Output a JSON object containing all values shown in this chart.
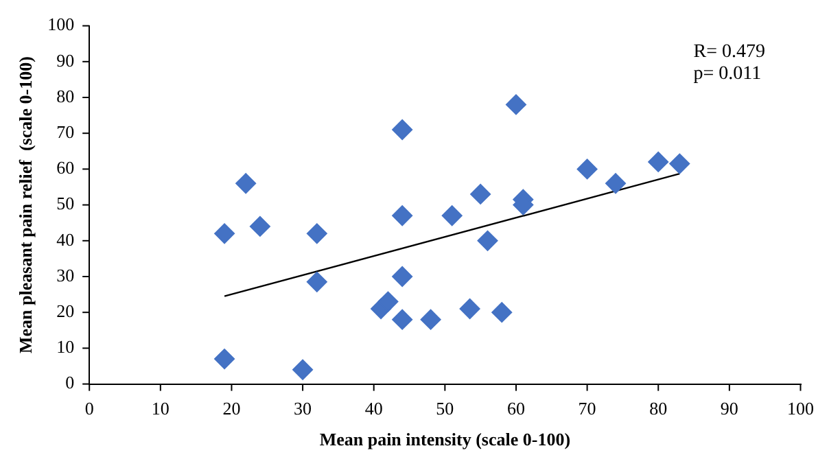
{
  "chart_data": {
    "type": "scatter",
    "xlabel": "Mean pain intensity (scale 0-100)",
    "ylabel": "Mean pleasant pain relief  (scale 0-100)",
    "xlim": [
      0,
      100
    ],
    "xticks": [
      0,
      10,
      20,
      30,
      40,
      50,
      60,
      70,
      80,
      90,
      100
    ],
    "ylim": [
      0,
      100
    ],
    "yticks": [
      0,
      10,
      20,
      30,
      40,
      50,
      60,
      70,
      80,
      90,
      100
    ],
    "grid": false,
    "legend": false,
    "series": [
      {
        "marker": "diamond",
        "color": "#4472c4",
        "x": [
          19,
          22,
          24,
          32,
          32,
          19,
          30,
          44,
          44,
          44,
          44,
          41,
          42,
          48,
          51,
          55,
          53.5,
          56,
          58,
          60,
          61,
          61,
          70,
          74,
          80,
          83
        ],
        "values": [
          42,
          56,
          44,
          42,
          28.5,
          7,
          4,
          71,
          47,
          30,
          18,
          21,
          23,
          18,
          47,
          53,
          21,
          40,
          20,
          78,
          51.5,
          50,
          60,
          56,
          62,
          61.5
        ]
      },
      {
        "type": "line",
        "marker": "none",
        "color": "#000000",
        "x": [
          19,
          83
        ],
        "values": [
          24.5,
          58.7
        ]
      }
    ],
    "annotations": [
      "R= 0.479",
      "p= 0.011"
    ]
  }
}
